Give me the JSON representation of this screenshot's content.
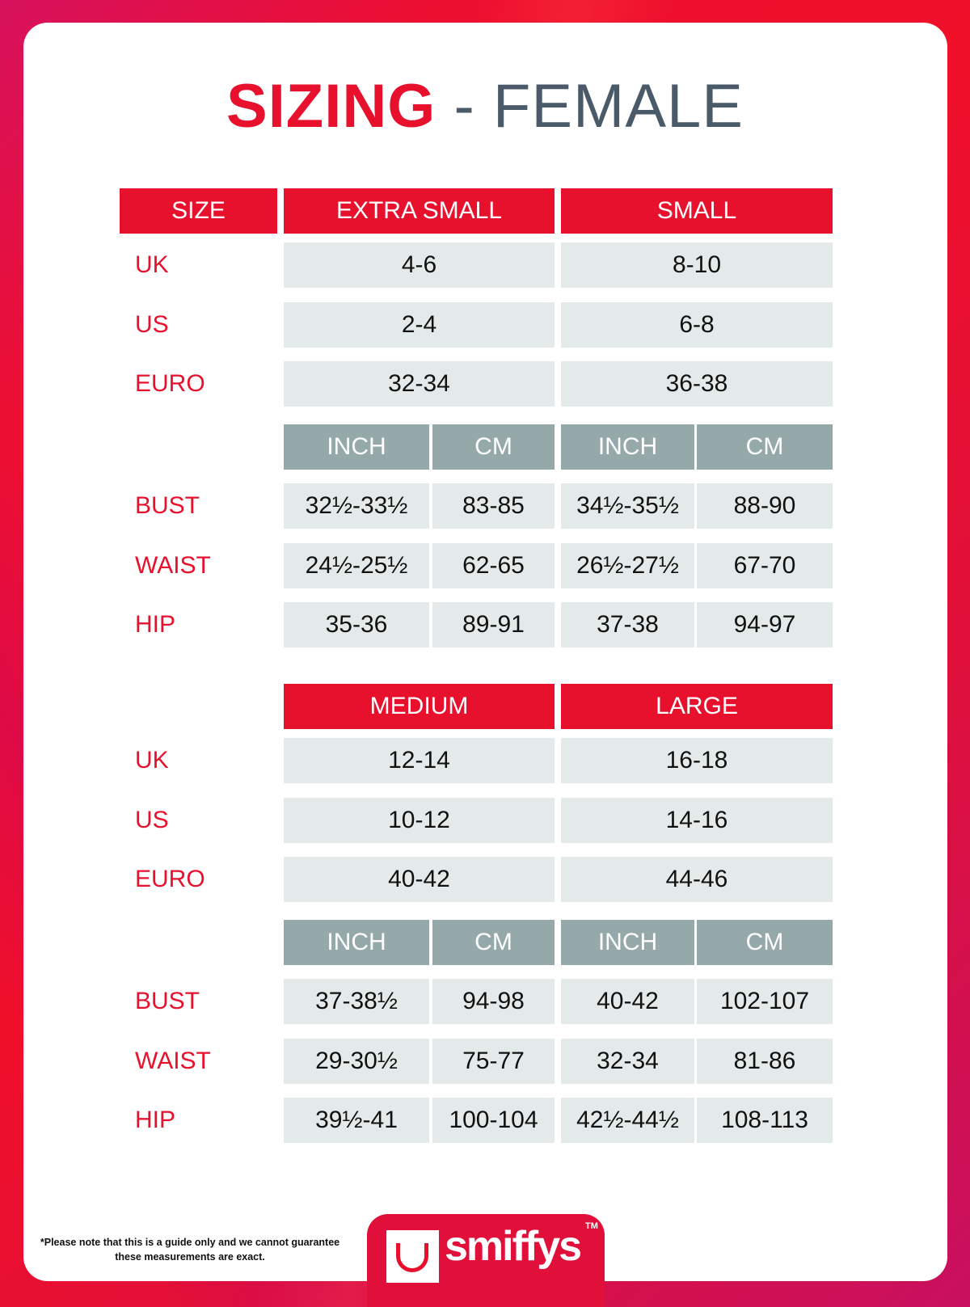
{
  "title": {
    "bold": "SIZING",
    "rest": " - FEMALE"
  },
  "size_label": "SIZE",
  "row_labels": {
    "uk": "UK",
    "us": "US",
    "euro": "EURO",
    "bust": "BUST",
    "waist": "WAIST",
    "hip": "HIP"
  },
  "units": {
    "inch": "INCH",
    "cm": "CM"
  },
  "blocks": [
    {
      "sizes": [
        {
          "name": "EXTRA SMALL",
          "uk": "4-6",
          "us": "2-4",
          "euro": "32-34",
          "bust": [
            "32½-33½",
            "83-85"
          ],
          "waist": [
            "24½-25½",
            "62-65"
          ],
          "hip": [
            "35-36",
            "89-91"
          ]
        },
        {
          "name": "SMALL",
          "uk": "8-10",
          "us": "6-8",
          "euro": "36-38",
          "bust": [
            "34½-35½",
            "88-90"
          ],
          "waist": [
            "26½-27½",
            "67-70"
          ],
          "hip": [
            "37-38",
            "94-97"
          ]
        }
      ]
    },
    {
      "sizes": [
        {
          "name": "MEDIUM",
          "uk": "12-14",
          "us": "10-12",
          "euro": "40-42",
          "bust": [
            "37-38½",
            "94-98"
          ],
          "waist": [
            "29-30½",
            "75-77"
          ],
          "hip": [
            "39½-41",
            "100-104"
          ]
        },
        {
          "name": "LARGE",
          "uk": "16-18",
          "us": "14-16",
          "euro": "44-46",
          "bust": [
            "40-42",
            "102-107"
          ],
          "waist": [
            "32-34",
            "81-86"
          ],
          "hip": [
            "42½-44½",
            "108-113"
          ]
        }
      ]
    }
  ],
  "footer": {
    "note": "*Please note that this is a guide only and we cannot guarantee these measurements are exact.",
    "brand": "smiffys",
    "tm": "TM"
  },
  "colors": {
    "accent": "#e8112d",
    "cell": "#e3eae9",
    "subheader": "#95a9ab",
    "title_grey": "#4a5a68"
  }
}
